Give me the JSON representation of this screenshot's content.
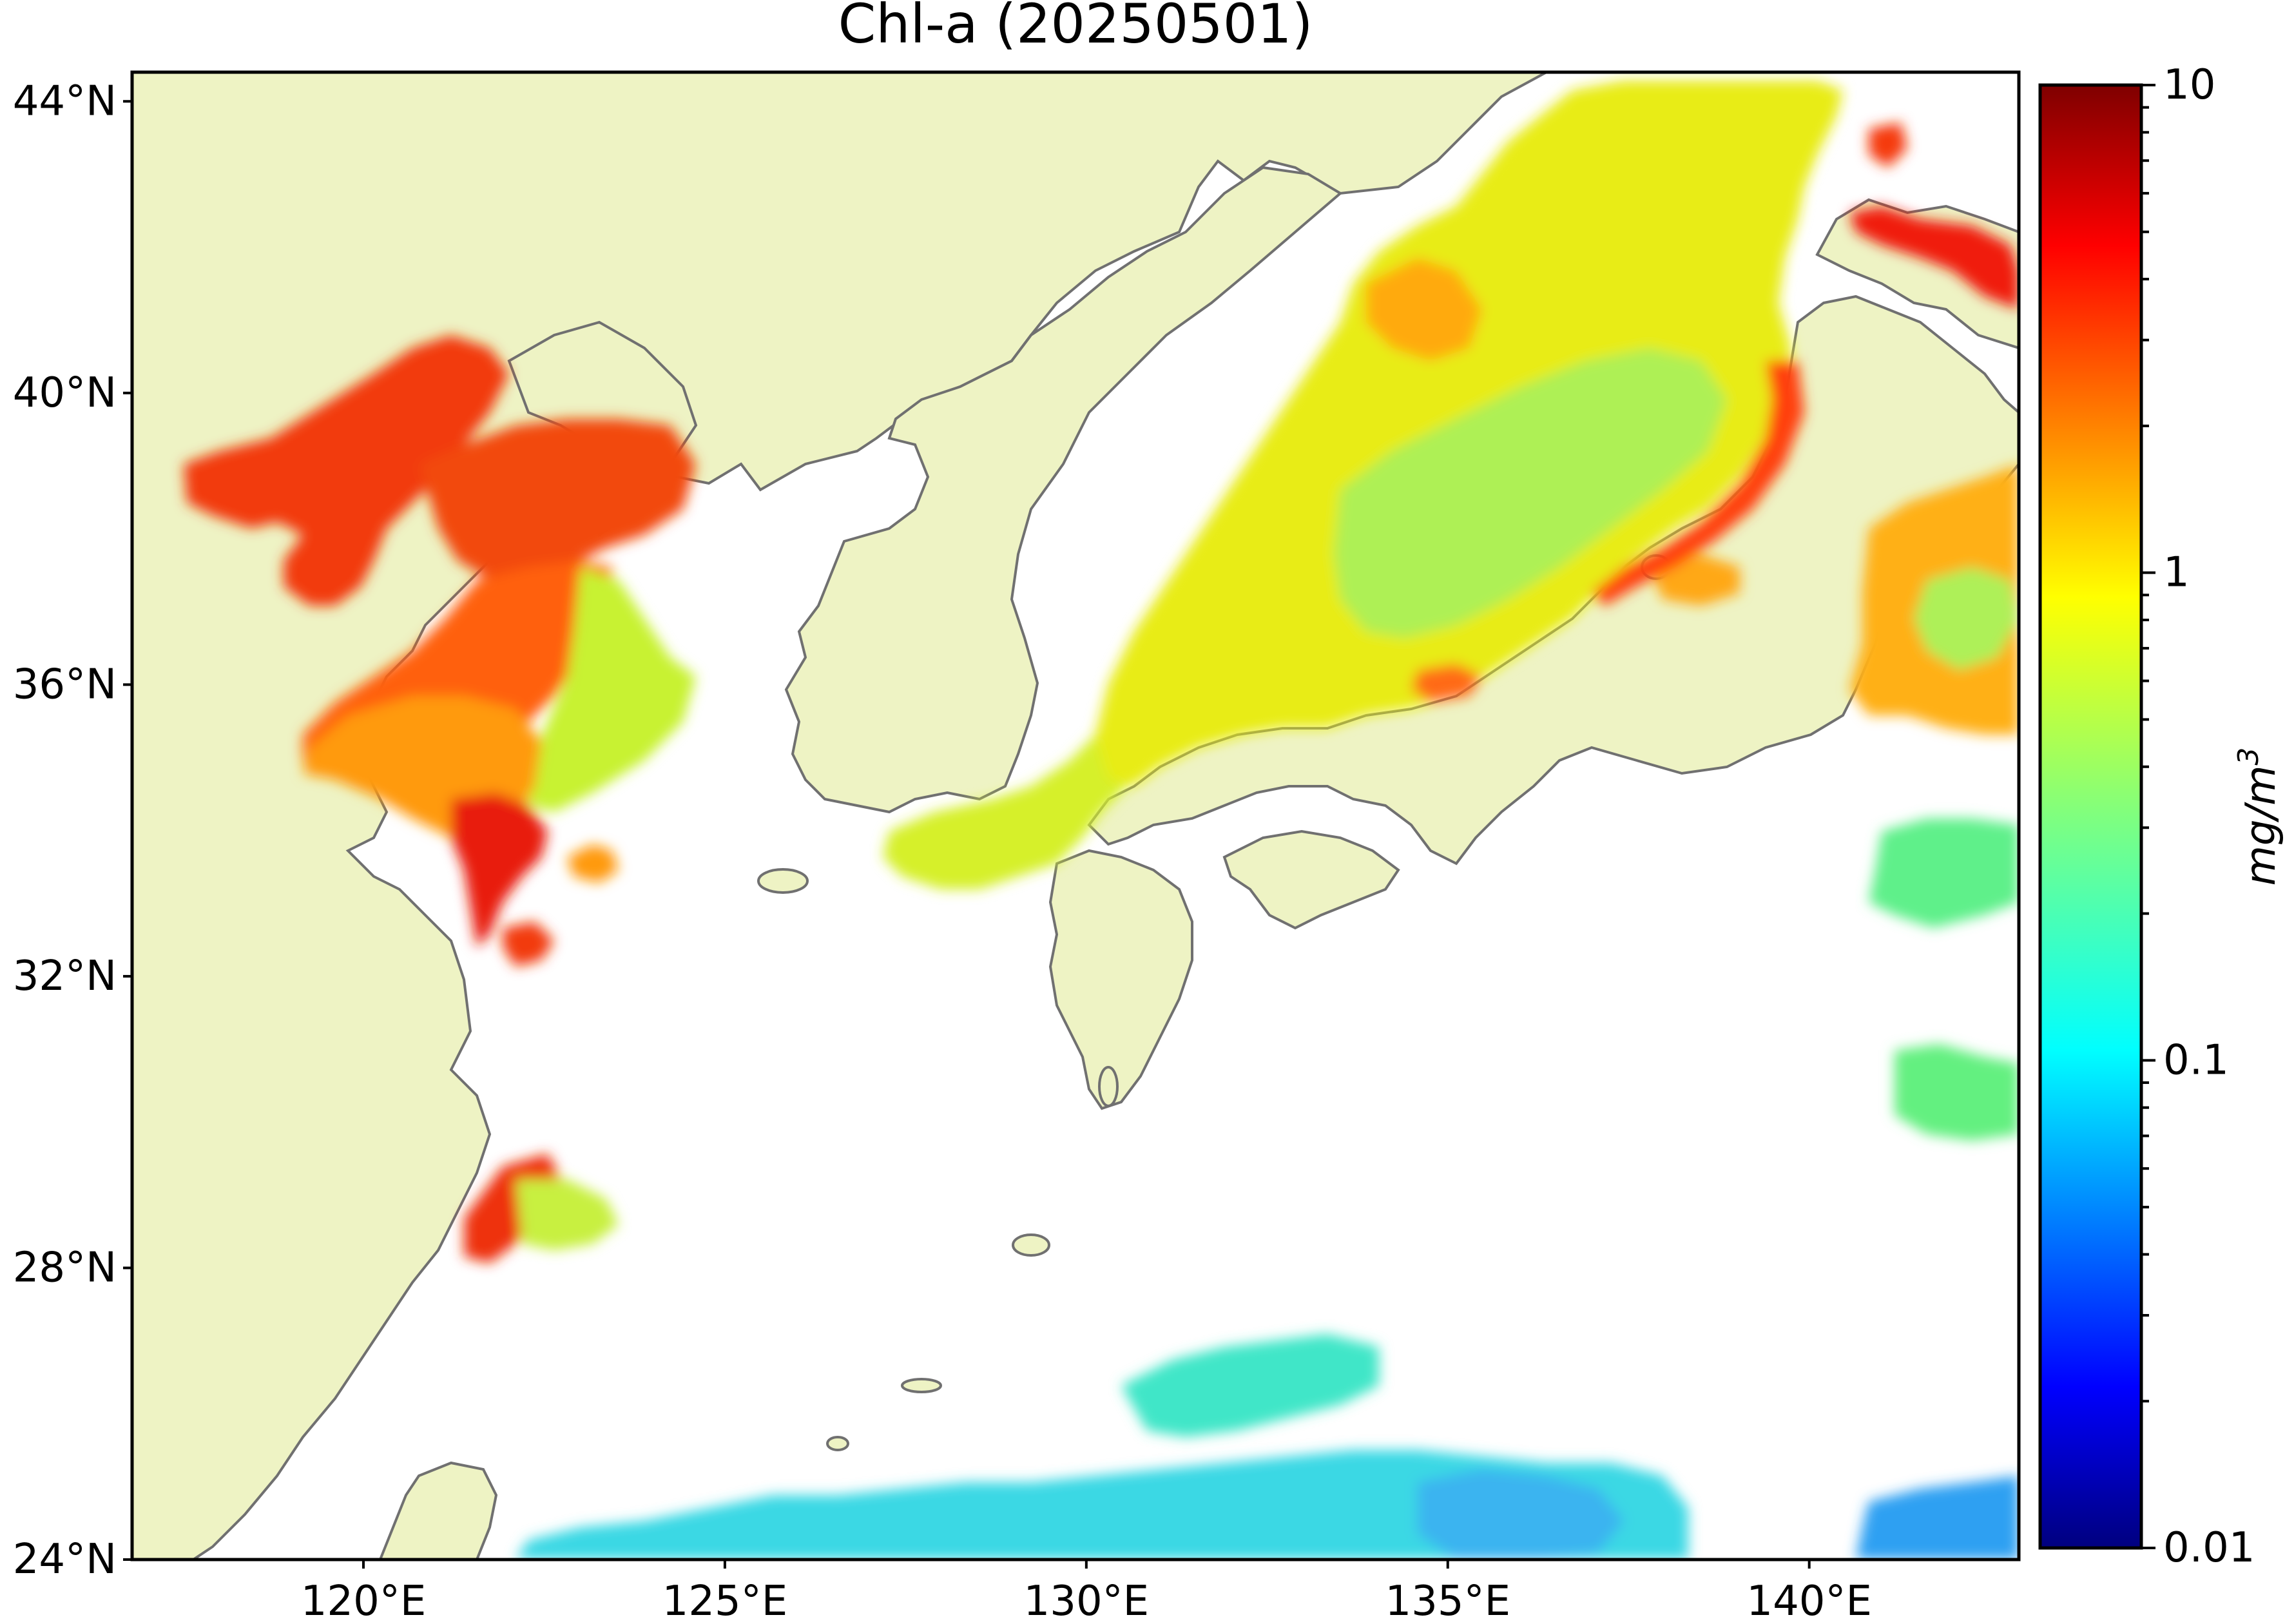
{
  "title": "Chl-a (20250501)",
  "map": {
    "lon_range": [
      116.8,
      142.9
    ],
    "lat_range": [
      24.0,
      44.4
    ],
    "lon_ticks": [
      {
        "value": 120,
        "label": "120°E"
      },
      {
        "value": 125,
        "label": "125°E"
      },
      {
        "value": 130,
        "label": "130°E"
      },
      {
        "value": 135,
        "label": "135°E"
      },
      {
        "value": 140,
        "label": "140°E"
      }
    ],
    "lat_ticks": [
      {
        "value": 24,
        "label": "24°N"
      },
      {
        "value": 28,
        "label": "28°N"
      },
      {
        "value": 32,
        "label": "32°N"
      },
      {
        "value": 36,
        "label": "36°N"
      },
      {
        "value": 40,
        "label": "40°N"
      },
      {
        "value": 44,
        "label": "44°N"
      }
    ],
    "land_color": "#eef3c4",
    "coastline_color": "#707070",
    "nodata_color": "#ffffff"
  },
  "colorbar": {
    "scale": "log",
    "range": [
      0.01,
      10
    ],
    "colormap": "jet",
    "ticks": [
      {
        "value": 0.01,
        "label": "0.01"
      },
      {
        "value": 0.1,
        "label": "0.1"
      },
      {
        "value": 1,
        "label": "1"
      },
      {
        "value": 10,
        "label": "10"
      }
    ],
    "unit_base": "mg/m",
    "unit_exponent": "3"
  }
}
